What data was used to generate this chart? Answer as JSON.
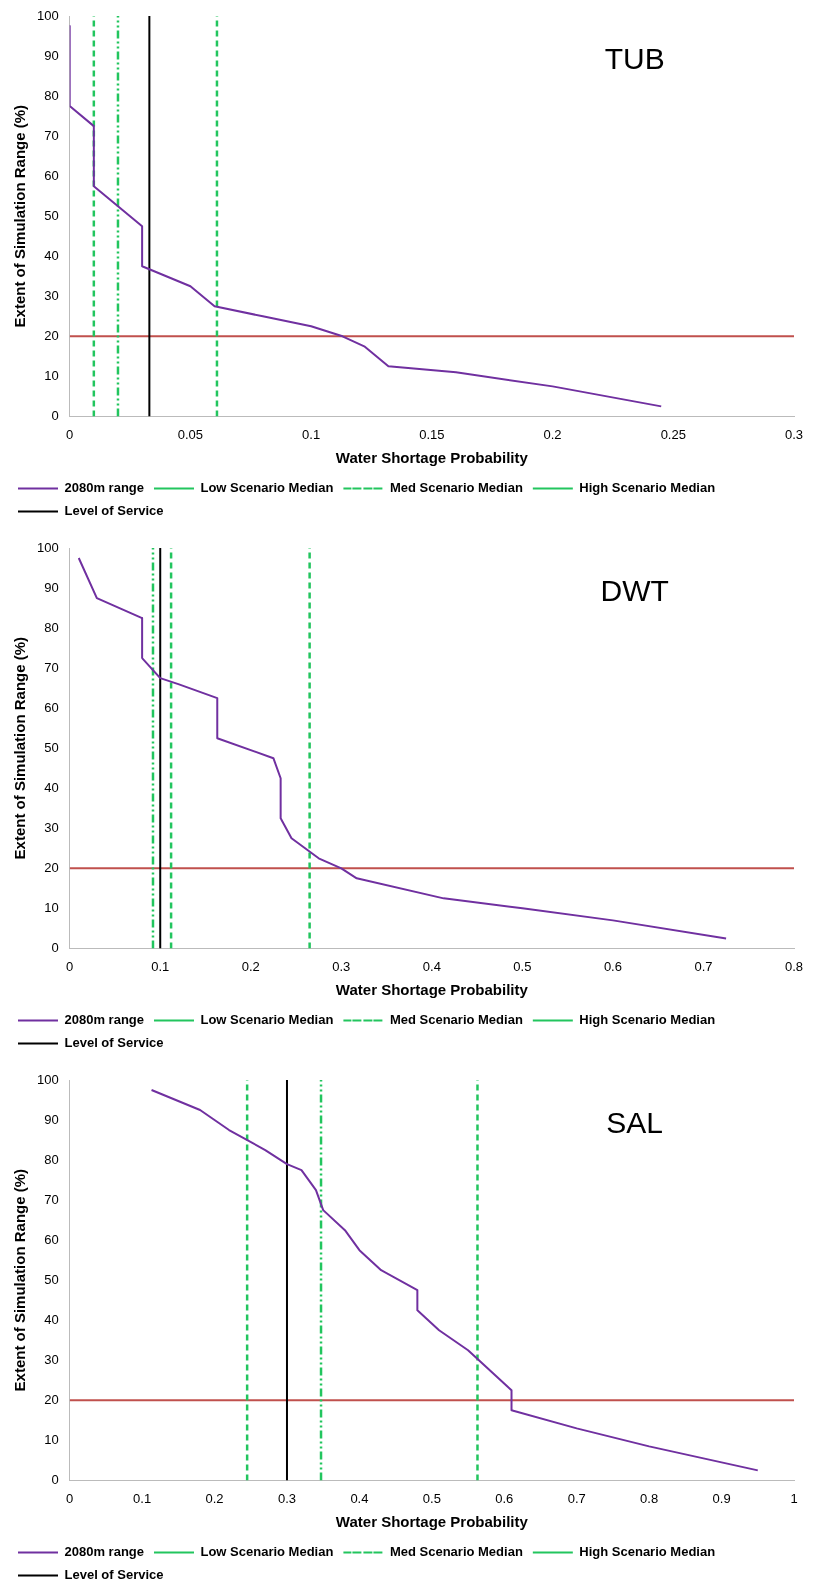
{
  "chart_data": [
    {
      "type": "line",
      "title": "TUB",
      "xlabel": "Water Shortage Probability",
      "ylabel": "Extent of Simulation Range (%)",
      "xlim": [
        0,
        0.3
      ],
      "xticks": [
        0,
        0.05,
        0.1,
        0.15,
        0.2,
        0.25,
        0.3
      ],
      "ylim": [
        0,
        100
      ],
      "yticks": [
        0,
        10,
        20,
        30,
        40,
        50,
        60,
        70,
        80,
        90,
        100
      ],
      "grid": false,
      "legend": "bottom",
      "marker": "none",
      "series": [
        {
          "name": "2080m range",
          "color": "#7030a0",
          "x": [
            0,
            0,
            0.01,
            0.01,
            0.02,
            0.03,
            0.03,
            0.04,
            0.05,
            0.06,
            0.08,
            0.1,
            0.113,
            0.122,
            0.132,
            0.16,
            0.2,
            0.245
          ],
          "values": [
            97.5,
            77.5,
            72.5,
            57.5,
            52.5,
            47.5,
            37.5,
            35,
            32.5,
            27.5,
            25,
            22.5,
            20,
            17.5,
            12.5,
            11,
            7.5,
            2.5
          ]
        }
      ],
      "ref_lines": [
        {
          "axis": "x",
          "value": 0.01,
          "label": "Low Scenario Median",
          "color": "#22c55e",
          "line_style": "dashed"
        },
        {
          "axis": "x",
          "value": 0.02,
          "label": "Med Scenario Median",
          "color": "#22c55e",
          "line_style": "dotted"
        },
        {
          "axis": "x",
          "value": 0.061,
          "label": "High Scenario Median",
          "color": "#22c55e",
          "line_style": "dashed"
        },
        {
          "axis": "x",
          "value": 0.033,
          "label": "Level of Service",
          "color": "#000000",
          "line_style": "solid"
        },
        {
          "axis": "y",
          "value": 20,
          "color": "#c0504d",
          "line_style": "solid"
        }
      ]
    },
    {
      "type": "line",
      "title": "DWT",
      "xlabel": "Water Shortage Probability",
      "ylabel": "Extent of Simulation Range (%)",
      "xlim": [
        0,
        0.8
      ],
      "xticks": [
        0,
        0.1,
        0.2,
        0.3,
        0.4,
        0.5,
        0.6,
        0.7,
        0.8
      ],
      "ylim": [
        0,
        100
      ],
      "yticks": [
        0,
        10,
        20,
        30,
        40,
        50,
        60,
        70,
        80,
        90,
        100
      ],
      "grid": false,
      "legend": "bottom",
      "marker": "none",
      "series": [
        {
          "name": "2080m range",
          "color": "#7030a0",
          "x": [
            0.01,
            0.03,
            0.08,
            0.08,
            0.09,
            0.1,
            0.12,
            0.163,
            0.163,
            0.225,
            0.233,
            0.233,
            0.245,
            0.275,
            0.3,
            0.317,
            0.413,
            0.5,
            0.6,
            0.725
          ],
          "values": [
            97.5,
            87.5,
            82.5,
            72.5,
            70,
            67.5,
            66,
            62.5,
            52.5,
            47.5,
            42.5,
            32.5,
            27.5,
            22.5,
            20,
            17.5,
            12.5,
            10,
            7,
            2.5
          ]
        }
      ],
      "ref_lines": [
        {
          "axis": "x",
          "value": 0.112,
          "label": "Low Scenario Median",
          "color": "#22c55e",
          "line_style": "dashed"
        },
        {
          "axis": "x",
          "value": 0.092,
          "label": "Med Scenario Median",
          "color": "#22c55e",
          "line_style": "dotted"
        },
        {
          "axis": "x",
          "value": 0.265,
          "label": "High Scenario Median",
          "color": "#22c55e",
          "line_style": "dashed"
        },
        {
          "axis": "x",
          "value": 0.1,
          "label": "Level of Service",
          "color": "#000000",
          "line_style": "solid"
        },
        {
          "axis": "y",
          "value": 20,
          "color": "#c0504d",
          "line_style": "solid"
        }
      ]
    },
    {
      "type": "line",
      "title": "SAL",
      "xlabel": "Water Shortage Probability",
      "ylabel": "Extent of Simulation Range (%)",
      "xlim": [
        0,
        1
      ],
      "xticks": [
        0,
        0.1,
        0.2,
        0.3,
        0.4,
        0.5,
        0.6,
        0.7,
        0.8,
        0.9,
        1
      ],
      "ylim": [
        0,
        100
      ],
      "yticks": [
        0,
        10,
        20,
        30,
        40,
        50,
        60,
        70,
        80,
        90,
        100
      ],
      "grid": false,
      "legend": "bottom",
      "marker": "none",
      "series": [
        {
          "name": "2080m range",
          "color": "#7030a0",
          "x": [
            0.113,
            0.18,
            0.22,
            0.27,
            0.3,
            0.32,
            0.34,
            0.35,
            0.38,
            0.4,
            0.43,
            0.48,
            0.48,
            0.51,
            0.55,
            0.61,
            0.61,
            0.7,
            0.8,
            0.95
          ],
          "values": [
            97.5,
            92.5,
            87.5,
            82.5,
            79,
            77.5,
            72.5,
            67.5,
            62.5,
            57.5,
            52.5,
            47.5,
            42.5,
            37.5,
            32.5,
            22.5,
            17.5,
            13,
            8.5,
            2.5
          ]
        }
      ],
      "ref_lines": [
        {
          "axis": "x",
          "value": 0.245,
          "label": "Low Scenario Median",
          "color": "#22c55e",
          "line_style": "dashed"
        },
        {
          "axis": "x",
          "value": 0.347,
          "label": "Med Scenario Median",
          "color": "#22c55e",
          "line_style": "dotted"
        },
        {
          "axis": "x",
          "value": 0.563,
          "label": "High Scenario Median",
          "color": "#22c55e",
          "line_style": "dashed"
        },
        {
          "axis": "x",
          "value": 0.3,
          "label": "Level of Service",
          "color": "#000000",
          "line_style": "solid"
        },
        {
          "axis": "y",
          "value": 20,
          "color": "#c0504d",
          "line_style": "solid"
        }
      ]
    }
  ]
}
